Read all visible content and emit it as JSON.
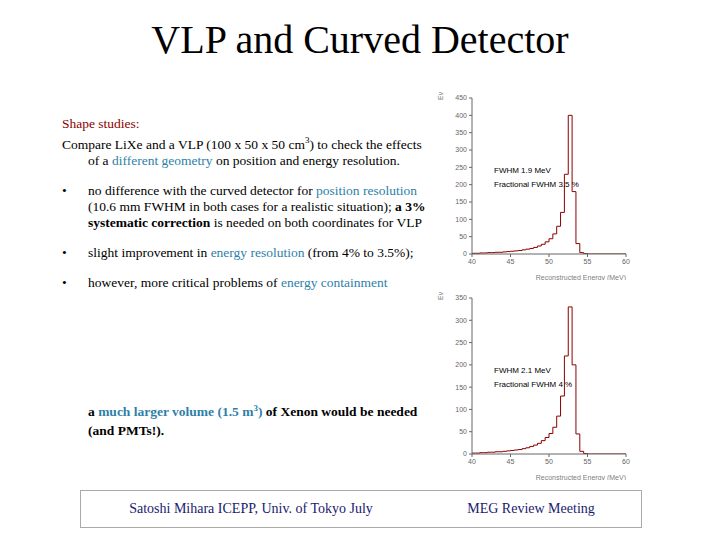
{
  "title": "VLP and Curved Detector",
  "bullet": "•",
  "intro": [
    "Shape studies:",
    "Compare LiXe and a VLP (100 x 50 x 50 cm",
    "3",
    ")  to check the effects of a ",
    "different geometry",
    " on position and energy resolution."
  ],
  "bullets": [
    [
      " no difference with the curved detector for ",
      "position resolution",
      "  (10.6 mm FWHM in both cases for a realistic situation); ",
      "a 3% systematic correction",
      " is needed on both coordinates for VLP"
    ],
    [
      "slight improvement in ",
      "energy resolution",
      " (from 4% to 3.5%);"
    ],
    [
      " however, more critical problems of ",
      "energy containment"
    ]
  ],
  "conclusion": [
    "a ",
    "much larger volume (1.5 m",
    "3",
    ")",
    " of Xenon would be needed (and PMTs!)."
  ],
  "footer": {
    "left": "Satoshi Mihara ICEPP, Univ. of Tokyo July",
    "right": "MEG Review Meeting"
  },
  "chart_data": [
    {
      "type": "histogram",
      "x_label": "Reconstructed Energy (MeV)",
      "y_label": "Events",
      "color": "#8b0000",
      "bins": [
        40,
        40.5,
        41,
        41.5,
        42,
        42.5,
        43,
        43.5,
        44,
        44.5,
        45,
        45.5,
        46,
        46.5,
        47,
        47.5,
        48,
        48.5,
        49,
        49.5,
        50,
        50.5,
        51,
        51.5,
        52,
        52.5,
        53,
        53.5,
        54,
        54.5,
        55,
        55.5,
        56,
        56.5,
        57,
        57.5,
        58,
        58.5,
        59,
        59.5,
        60
      ],
      "counts": [
        2,
        2,
        3,
        3,
        4,
        4,
        5,
        5,
        6,
        7,
        8,
        9,
        10,
        12,
        14,
        16,
        19,
        23,
        28,
        35,
        44,
        58,
        80,
        120,
        230,
        400,
        180,
        30,
        4,
        1,
        0,
        0,
        0,
        0,
        0,
        0,
        0,
        0,
        0,
        0
      ],
      "xlim": [
        40,
        60
      ],
      "xticks": [
        40,
        45,
        50,
        55,
        60
      ],
      "ylim": [
        0,
        450
      ],
      "yticks": [
        0,
        50,
        100,
        150,
        200,
        250,
        300,
        350,
        400,
        450
      ],
      "annotations": [
        "FWHM 1.9 MeV",
        "Fractional FWHM 3.5 %"
      ]
    },
    {
      "type": "histogram",
      "x_label": "Reconstructed Energy (MeV)",
      "y_label": "Events",
      "color": "#8b0000",
      "bins": [
        40,
        40.5,
        41,
        41.5,
        42,
        42.5,
        43,
        43.5,
        44,
        44.5,
        45,
        45.5,
        46,
        46.5,
        47,
        47.5,
        48,
        48.5,
        49,
        49.5,
        50,
        50.5,
        51,
        51.5,
        52,
        52.5,
        53,
        53.5,
        54,
        54.5,
        55,
        55.5,
        56,
        56.5,
        57,
        57.5,
        58,
        58.5,
        59,
        59.5,
        60
      ],
      "counts": [
        2,
        2,
        3,
        3,
        4,
        4,
        5,
        5,
        6,
        7,
        8,
        9,
        10,
        12,
        14,
        17,
        20,
        24,
        30,
        37,
        46,
        60,
        85,
        130,
        220,
        330,
        200,
        45,
        6,
        1,
        0,
        0,
        0,
        0,
        0,
        0,
        0,
        0,
        0,
        0
      ],
      "xlim": [
        40,
        60
      ],
      "xticks": [
        40,
        45,
        50,
        55,
        60
      ],
      "ylim": [
        0,
        350
      ],
      "yticks": [
        0,
        50,
        100,
        150,
        200,
        250,
        300,
        350
      ],
      "annotations": [
        "FWHM 2.1 MeV",
        "Fractional FWHM 4 %"
      ]
    }
  ]
}
